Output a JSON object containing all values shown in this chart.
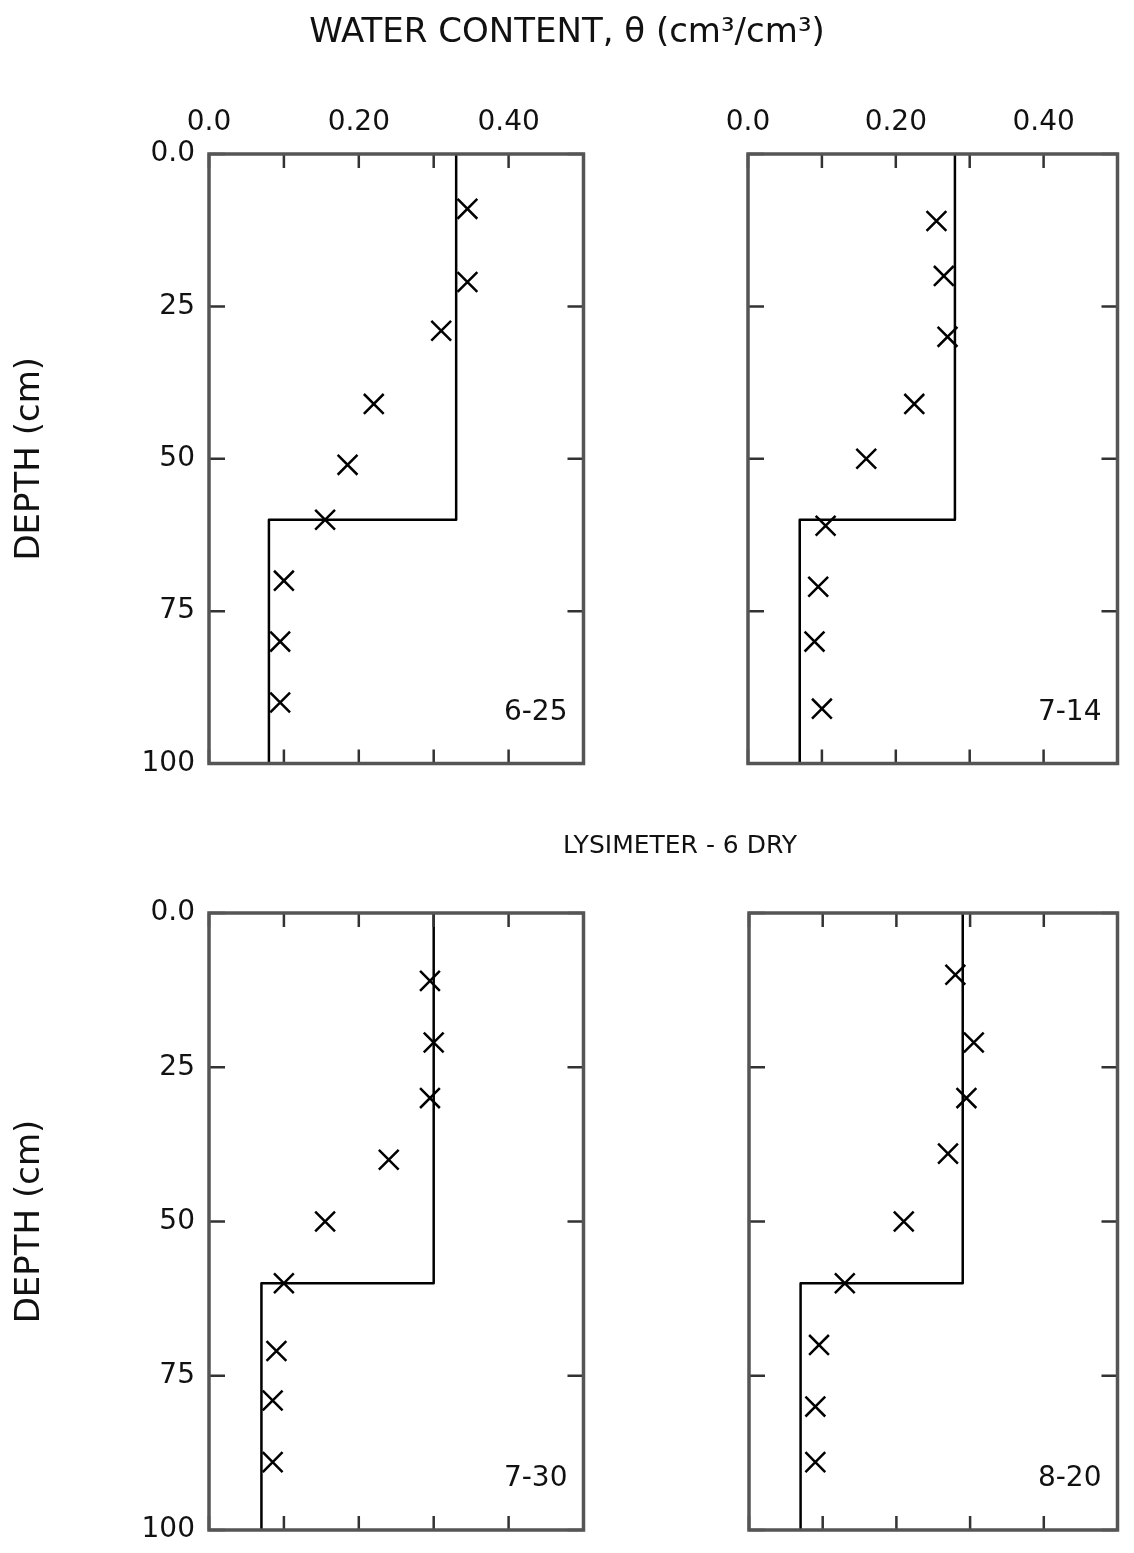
{
  "chart_data": [
    {
      "type": "scatter",
      "xlabel": "WATER CONTENT, θ (cm³/cm³)",
      "ylabel": "DEPTH (cm)",
      "annotations": [
        "6-25"
      ],
      "xlim": [
        0,
        0.5
      ],
      "xticks": [
        {
          "value": 0,
          "label": "0.0"
        },
        {
          "value": 0.1,
          "label": null
        },
        {
          "value": 0.2,
          "label": "0.20"
        },
        {
          "value": 0.3,
          "label": null
        },
        {
          "value": 0.4,
          "label": "0.40"
        }
      ],
      "ylim": [
        100,
        0
      ],
      "yticks": [
        {
          "value": 0,
          "label": "0.0"
        },
        25,
        50,
        75,
        100
      ],
      "series": [
        {
          "type": "scatter",
          "marker": "cross",
          "color": "#000000",
          "x": [
            0.345,
            0.345,
            0.31,
            0.22,
            0.185,
            0.155,
            0.1,
            0.095,
            0.095
          ],
          "values": [
            9,
            21,
            29,
            41,
            51,
            60,
            70,
            80,
            90
          ]
        },
        {
          "type": "line",
          "color": "#000000",
          "x": [
            0.33,
            0.33,
            0.08,
            0.08
          ],
          "values": [
            0,
            60,
            60,
            100
          ]
        }
      ]
    },
    {
      "type": "scatter",
      "tick_labels": "x",
      "annotations": [
        "7-14"
      ],
      "xlim": [
        0,
        0.5
      ],
      "xticks": [
        {
          "value": 0,
          "label": "0.0"
        },
        {
          "value": 0.1,
          "label": null
        },
        {
          "value": 0.2,
          "label": "0.20"
        },
        {
          "value": 0.3,
          "label": null
        },
        {
          "value": 0.4,
          "label": "0.40"
        }
      ],
      "ylim": [
        100,
        0
      ],
      "yticks": [
        0,
        25,
        50,
        75,
        100
      ],
      "series": [
        {
          "type": "scatter",
          "marker": "cross",
          "color": "#000000",
          "x": [
            0.255,
            0.265,
            0.27,
            0.225,
            0.16,
            0.105,
            0.095,
            0.09,
            0.1
          ],
          "values": [
            11,
            20,
            30,
            41,
            50,
            61,
            71,
            80,
            91
          ]
        },
        {
          "type": "line",
          "color": "#000000",
          "x": [
            0.28,
            0.28,
            0.07,
            0.07
          ],
          "values": [
            0,
            60,
            60,
            100
          ]
        }
      ]
    },
    {
      "type": "scatter",
      "title": "LYSIMETER - 6 DRY",
      "ylabel": "DEPTH (cm)",
      "tick_labels": "y",
      "annotations": [
        "7-30"
      ],
      "xlim": [
        0,
        0.5
      ],
      "xticks": [
        0,
        0.1,
        0.2,
        0.3,
        0.4
      ],
      "ylim": [
        100,
        0
      ],
      "yticks": [
        {
          "value": 0,
          "label": "0.0"
        },
        25,
        50,
        75,
        100
      ],
      "series": [
        {
          "type": "scatter",
          "marker": "cross",
          "color": "#000000",
          "x": [
            0.295,
            0.3,
            0.295,
            0.24,
            0.155,
            0.1,
            0.09,
            0.085,
            0.085
          ],
          "values": [
            11,
            21,
            30,
            40,
            50,
            60,
            71,
            79,
            89
          ]
        },
        {
          "type": "line",
          "color": "#000000",
          "x": [
            0.3,
            0.3,
            0.07,
            0.07
          ],
          "values": [
            0,
            60,
            60,
            100
          ]
        }
      ]
    },
    {
      "type": "scatter",
      "tick_labels": false,
      "annotations": [
        "8-20"
      ],
      "xlim": [
        0,
        0.5
      ],
      "xticks": [
        0,
        0.1,
        0.2,
        0.3,
        0.4
      ],
      "ylim": [
        100,
        0
      ],
      "yticks": [
        0,
        25,
        50,
        75,
        100
      ],
      "series": [
        {
          "type": "scatter",
          "marker": "cross",
          "color": "#000000",
          "x": [
            0.28,
            0.305,
            0.295,
            0.27,
            0.21,
            0.13,
            0.095,
            0.09,
            0.09
          ],
          "values": [
            10,
            21,
            30,
            39,
            50,
            60,
            70,
            80,
            89
          ]
        },
        {
          "type": "line",
          "color": "#000000",
          "x": [
            0.29,
            0.29,
            0.07,
            0.07
          ],
          "values": [
            0,
            60,
            60,
            100
          ]
        }
      ]
    }
  ]
}
